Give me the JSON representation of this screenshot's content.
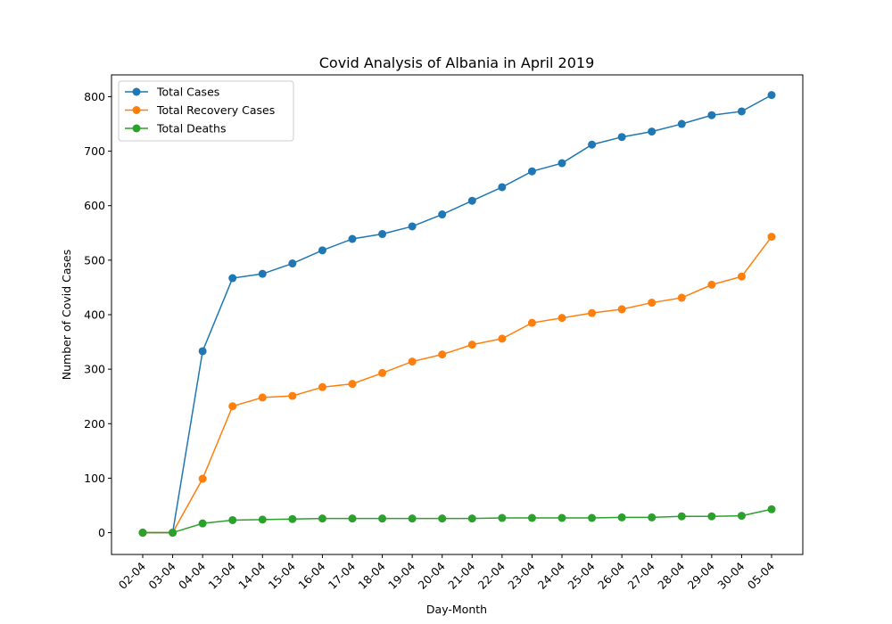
{
  "chart_data": {
    "type": "line",
    "title": "Covid Analysis of Albania in April 2019",
    "xlabel": "Day-Month",
    "ylabel": "Number of Covid Cases",
    "categories": [
      "02-04",
      "03-04",
      "04-04",
      "13-04",
      "14-04",
      "15-04",
      "16-04",
      "17-04",
      "18-04",
      "19-04",
      "20-04",
      "21-04",
      "22-04",
      "23-04",
      "24-04",
      "25-04",
      "26-04",
      "27-04",
      "28-04",
      "29-04",
      "30-04",
      "05-04"
    ],
    "ylim": [
      -40,
      840
    ],
    "yticks": [
      0,
      100,
      200,
      300,
      400,
      500,
      600,
      700,
      800
    ],
    "grid": false,
    "legend_position": "top-left",
    "series": [
      {
        "name": "Total Cases",
        "color": "#1f77b4",
        "values": [
          0,
          0,
          333,
          467,
          475,
          494,
          518,
          539,
          548,
          562,
          584,
          609,
          634,
          663,
          678,
          712,
          726,
          736,
          750,
          766,
          773,
          803
        ]
      },
      {
        "name": "Total Recovery Cases",
        "color": "#ff7f0e",
        "values": [
          0,
          0,
          99,
          232,
          248,
          251,
          267,
          273,
          293,
          314,
          327,
          345,
          356,
          385,
          394,
          403,
          410,
          422,
          431,
          455,
          470,
          543
        ]
      },
      {
        "name": "Total Deaths",
        "color": "#2ca02c",
        "values": [
          0,
          0,
          17,
          23,
          24,
          25,
          26,
          26,
          26,
          26,
          26,
          26,
          27,
          27,
          27,
          27,
          28,
          28,
          30,
          30,
          31,
          43
        ]
      }
    ]
  }
}
